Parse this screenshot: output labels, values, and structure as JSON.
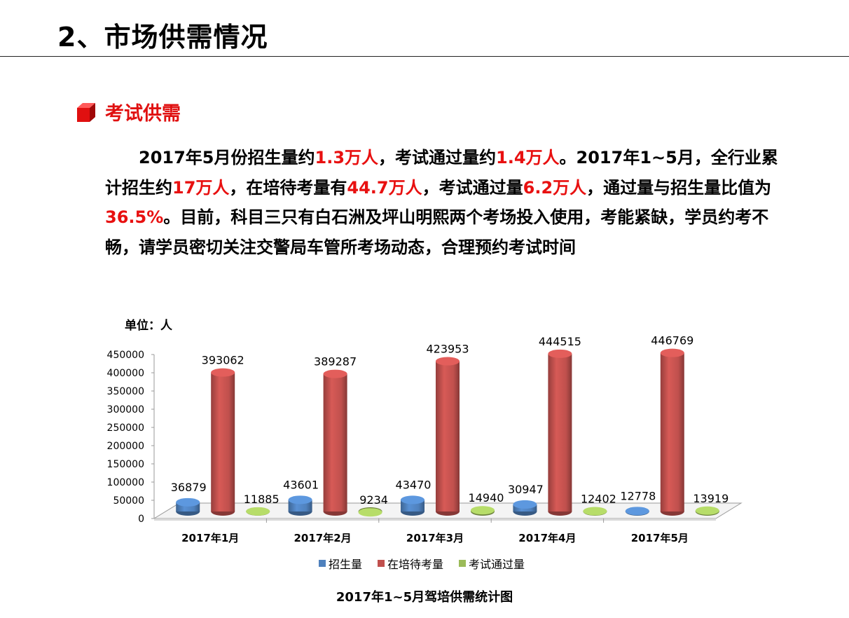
{
  "header": {
    "title": "2、市场供需情况"
  },
  "section": {
    "heading": "考试供需",
    "icon": "red-cube-icon",
    "icon_color": "#e01010"
  },
  "paragraph": [
    {
      "t": "2017年5月份招生量约",
      "hl": false
    },
    {
      "t": "1.3万人",
      "hl": true
    },
    {
      "t": "，考试通过量约",
      "hl": false
    },
    {
      "t": "1.4万人",
      "hl": true
    },
    {
      "t": "。2017年1~5月，全行业累计招生约",
      "hl": false
    },
    {
      "t": "17万人",
      "hl": true
    },
    {
      "t": "，在培待考量有",
      "hl": false
    },
    {
      "t": "44.7万人",
      "hl": true
    },
    {
      "t": "，考试通过量",
      "hl": false
    },
    {
      "t": "6.2万人",
      "hl": true
    },
    {
      "t": "，通过量与招生量比值为",
      "hl": false
    },
    {
      "t": "36.5%",
      "hl": true
    },
    {
      "t": "。目前，科目三只有白石洲及坪山明熙两个考场投入使用，考能紧缺，学员约考不畅，请学员密切关注交警局车管所考场动态，合理预约考试时间",
      "hl": false
    }
  ],
  "highlight_color": "#e81010",
  "chart_data": {
    "type": "bar",
    "unit_label": "单位：人",
    "title": "2017年1~5月驾培供需统计图",
    "categories": [
      "2017年1月",
      "2017年2月",
      "2017年3月",
      "2017年4月",
      "2017年5月"
    ],
    "series": [
      {
        "name": "招生量",
        "color": "#4f81bd",
        "values": [
          36879,
          43601,
          43470,
          30947,
          12778
        ]
      },
      {
        "name": "在培待考量",
        "color": "#c0504d",
        "values": [
          393062,
          389287,
          423953,
          444515,
          446769
        ]
      },
      {
        "name": "考试通过量",
        "color": "#9bbb59",
        "values": [
          11885,
          9234,
          14940,
          12402,
          13919
        ]
      }
    ],
    "yticks": [
      0,
      50000,
      100000,
      150000,
      200000,
      250000,
      300000,
      350000,
      400000,
      450000
    ],
    "ylim": [
      0,
      450000
    ],
    "style": "3d-cylinder",
    "grid": false,
    "legend_position": "bottom"
  }
}
